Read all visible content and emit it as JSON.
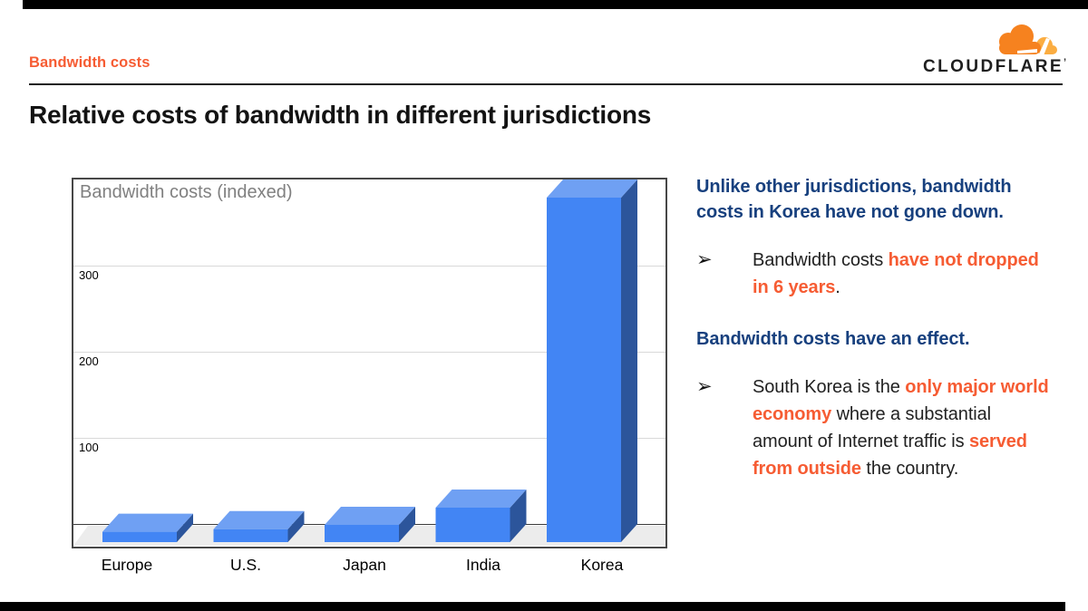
{
  "header": {
    "eyebrow": "Bandwidth costs",
    "brand": "CLOUDFLARE",
    "trademark_tick": "’"
  },
  "title": "Relative costs of bandwidth in different jurisdictions",
  "chart_data": {
    "type": "bar",
    "variant": "3d",
    "title": "Bandwidth costs (indexed)",
    "categories": [
      "Europe",
      "U.S.",
      "Japan",
      "India",
      "Korea"
    ],
    "values": [
      12,
      15,
      20,
      40,
      400
    ],
    "yticks": [
      100,
      200,
      300
    ],
    "ylim": [
      0,
      405
    ],
    "grid": true,
    "legend": false,
    "xlabel": "",
    "ylabel": ""
  },
  "notes": {
    "bullet_glyph": "➢",
    "heading1": "Unlike other jurisdictions, bandwidth costs in Korea have not gone down.",
    "bullet1": [
      {
        "text": "Bandwidth costs ",
        "style": "plain"
      },
      {
        "text": "have not dropped in 6 years",
        "style": "em"
      },
      {
        "text": ".",
        "style": "plain"
      }
    ],
    "heading2": "Bandwidth costs have an effect.",
    "bullet2": [
      {
        "text": "South Korea is the ",
        "style": "plain"
      },
      {
        "text": "only major world economy",
        "style": "em"
      },
      {
        "text": " where a substantial amount of Internet traffic is ",
        "style": "plain"
      },
      {
        "text": "served from outside",
        "style": "em"
      },
      {
        "text": " the country.",
        "style": "plain"
      }
    ]
  },
  "colors": {
    "accent_orange": "#F65C33",
    "navy": "#17407E",
    "logo_orange": "#F6821F",
    "logo_light_orange": "#FBAD41",
    "bar_front": "#4285F4",
    "bar_top": "#6FA0F3",
    "bar_side": "#2C559B",
    "gridline": "#D9D9D9",
    "floor": "#ECECEC",
    "plot_border": "#474747",
    "chart_title_gray": "#808080"
  }
}
